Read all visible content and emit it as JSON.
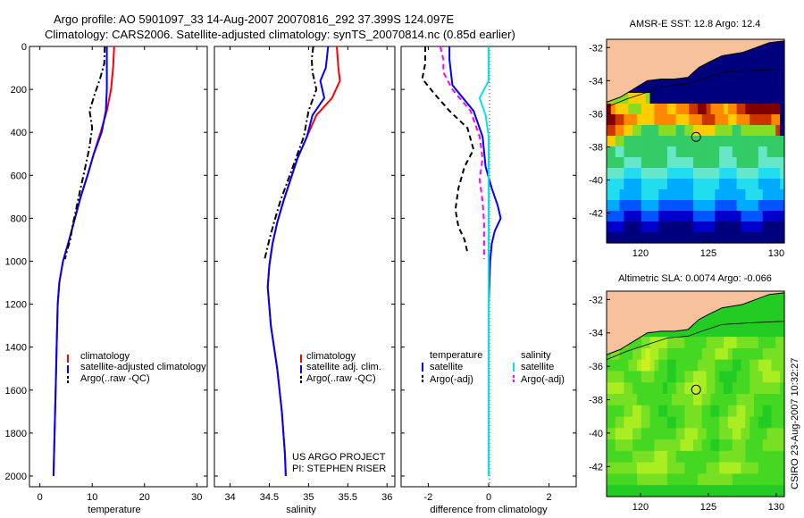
{
  "header": {
    "line1": "Argo profile: AO 5901097_33 14-Aug-2007 20070816_292 37.399S 124.097E",
    "line2": "Climatology: CARS2006. Satellite-adjusted climatology: synTS_20070814.nc (0.85d earlier)"
  },
  "credit": {
    "project": "US ARGO PROJECT",
    "pi": "PI: STEPHEN RISER",
    "stamp": "CSIRO 23-Aug-2007 10:32:27"
  },
  "colors": {
    "red": "#ff0000",
    "blue": "#0000ff",
    "black": "#000000",
    "cyan": "#00e5e5",
    "magenta": "#ff00ff",
    "land": "#f7c19b"
  },
  "chart_data": [
    {
      "type": "line",
      "id": "temperature",
      "xlabel": "temperature",
      "ylabel": "",
      "xlim": [
        -2,
        32
      ],
      "ylim": [
        2050,
        0
      ],
      "xticks": [
        0,
        10,
        20,
        30
      ],
      "yticks": [
        0,
        200,
        400,
        600,
        800,
        1000,
        1200,
        1400,
        1600,
        1800,
        2000
      ],
      "series": [
        {
          "name": "climatology",
          "color": "red",
          "dash": "solid",
          "x": [
            14.2,
            14.0,
            13.6,
            12.8,
            11.6,
            10.3,
            9.1,
            7.8,
            6.7,
            5.6,
            4.4,
            3.7,
            3.4,
            3.2,
            3.0,
            2.8,
            2.6
          ],
          "y": [
            0,
            100,
            200,
            300,
            400,
            500,
            600,
            700,
            800,
            900,
            1000,
            1100,
            1200,
            1400,
            1600,
            1800,
            2000
          ]
        },
        {
          "name": "satellite-adjusted climatology",
          "color": "blue",
          "dash": "solid",
          "x": [
            12.8,
            12.8,
            12.8,
            12.6,
            11.8,
            10.3,
            9.1,
            7.8,
            6.7,
            5.6,
            4.4,
            3.7,
            3.4,
            3.2,
            3.0,
            2.8,
            2.6
          ],
          "y": [
            0,
            100,
            200,
            300,
            400,
            500,
            600,
            700,
            800,
            900,
            1000,
            1100,
            1200,
            1400,
            1600,
            1800,
            2000
          ]
        },
        {
          "name": "Argo(..raw -QC)",
          "color": "black",
          "dash": "dashdot",
          "x": [
            12.4,
            12.3,
            11.5,
            10.5,
            9.5,
            10.0,
            9.4,
            8.5,
            7.6,
            6.9,
            6.2,
            5.8,
            5.2,
            4.8
          ],
          "y": [
            0,
            80,
            150,
            220,
            300,
            380,
            480,
            580,
            680,
            760,
            840,
            900,
            950,
            990
          ]
        }
      ],
      "legend": "center-right"
    },
    {
      "type": "line",
      "id": "salinity",
      "xlabel": "salinity",
      "ylabel": "",
      "xlim": [
        33.8,
        36.1
      ],
      "ylim": [
        2050,
        0
      ],
      "xticks": [
        34,
        34.5,
        35,
        35.5,
        36
      ],
      "series": [
        {
          "name": "climatology",
          "color": "red",
          "dash": "solid",
          "x": [
            35.36,
            35.38,
            35.4,
            35.3,
            35.1,
            34.98,
            34.86,
            34.77,
            34.68,
            34.6,
            34.54,
            34.5,
            34.48,
            34.52,
            34.6,
            34.66,
            34.7,
            34.71
          ],
          "y": [
            0,
            100,
            160,
            240,
            320,
            420,
            520,
            620,
            720,
            820,
            920,
            1020,
            1120,
            1300,
            1500,
            1700,
            1900,
            2000
          ]
        },
        {
          "name": "satellite adj. clim.",
          "color": "blue",
          "dash": "solid",
          "x": [
            35.25,
            35.22,
            35.15,
            35.2,
            35.05,
            34.98,
            34.86,
            34.77,
            34.68,
            34.6,
            34.54,
            34.5,
            34.48,
            34.52,
            34.6,
            34.66,
            34.7,
            34.71
          ],
          "y": [
            0,
            100,
            160,
            240,
            320,
            420,
            520,
            620,
            720,
            820,
            920,
            1020,
            1120,
            1300,
            1500,
            1700,
            1900,
            2000
          ]
        },
        {
          "name": "Argo(..raw -QC)",
          "color": "black",
          "dash": "dashdot",
          "x": [
            35.06,
            35.04,
            35.05,
            35.1,
            35.0,
            34.94,
            34.84,
            34.74,
            34.64,
            34.56,
            34.5,
            34.46,
            34.44
          ],
          "y": [
            0,
            60,
            120,
            200,
            300,
            420,
            520,
            620,
            720,
            820,
            900,
            960,
            990
          ]
        }
      ],
      "legend": "center-right"
    },
    {
      "type": "line",
      "id": "difference",
      "xlabel": "difference from climatology",
      "ylabel": "",
      "xlim": [
        -2.9,
        2.9
      ],
      "ylim": [
        2050,
        0
      ],
      "xticks": [
        -2,
        0,
        2
      ],
      "legend_headers": [
        "temperature",
        "salinity"
      ],
      "series": [
        {
          "name": "satellite",
          "group": "temperature",
          "color": "blue",
          "dash": "solid",
          "x": [
            -1.3,
            -1.3,
            -1.2,
            -0.5,
            -0.2,
            -0.1,
            0.1,
            0.3,
            0.4,
            0.2,
            0.1,
            0.05,
            0.0,
            0.0,
            0.0
          ],
          "y": [
            0,
            60,
            180,
            300,
            420,
            560,
            660,
            740,
            800,
            860,
            920,
            1000,
            1200,
            1600,
            2000
          ]
        },
        {
          "name": "Argo(-adj)",
          "group": "temperature",
          "color": "black",
          "dash": "dashed",
          "x": [
            -2.1,
            -2.1,
            -2.2,
            -1.8,
            -1.3,
            -0.7,
            -0.5,
            -0.8,
            -1.0,
            -1.1,
            -1.0,
            -0.8,
            -0.7
          ],
          "y": [
            0,
            80,
            150,
            220,
            300,
            380,
            480,
            560,
            660,
            760,
            840,
            900,
            960
          ]
        },
        {
          "name": "satellite",
          "group": "salinity",
          "color": "cyan",
          "dash": "solid",
          "x": [
            0.0,
            0.0,
            0.0,
            -0.3,
            -0.1,
            0.0,
            0.0,
            0.0,
            0.0,
            0.0,
            0.0
          ],
          "y": [
            0,
            100,
            160,
            240,
            320,
            420,
            600,
            1000,
            1400,
            1800,
            2000
          ]
        },
        {
          "name": "Argo(-adj)",
          "group": "salinity",
          "color": "magenta",
          "dash": "dashed",
          "x": [
            -1.6,
            -1.5,
            -1.5,
            -1.2,
            -0.6,
            -0.3,
            -0.2,
            -0.3,
            -0.2,
            -0.15,
            -0.15
          ],
          "y": [
            0,
            60,
            120,
            200,
            300,
            420,
            520,
            620,
            720,
            820,
            990
          ]
        }
      ]
    },
    {
      "type": "heatmap",
      "id": "sst",
      "title": "AMSR-E SST: 12.8 Argo: 12.4",
      "xlim": [
        117.5,
        130.6
      ],
      "ylim": [
        -43.8,
        -31.5
      ],
      "xticks": [
        120,
        125,
        130
      ],
      "yticks": [
        -32,
        -34,
        -36,
        -38,
        -40,
        -42
      ],
      "marker": {
        "lon": 124.097,
        "lat": -37.399
      },
      "palette": [
        "#00007f",
        "#0000cc",
        "#0055ff",
        "#00aaff",
        "#22ddee",
        "#66e8c8",
        "#33cc66",
        "#88dd22",
        "#ffcc00",
        "#ff8800",
        "#cc3300",
        "#7f0000"
      ],
      "rows": [
        "00000000000000000000000000000000000000000",
        "00000000000000000000000000000000000000000",
        "00000000000000000000000000000000000000000",
        "00000000000000000000000000000000000000000",
        "77777000000000000000000000000000000000000",
        "7777788887000000000000000000000000000000",
        "B988877788899988999AABBA999899AABBBBBBBB",
        "BBAA999888899999888999AAA99988999AAAAA99",
        "AA9988776666777766778888877776677777777A",
        "88776666666666666666666666666666666666666",
        "66556666666666556666666666555666666556666",
        "66665555666666555555666666555566666555555",
        "55554444555555444444555555444455555444445",
        "44443333444444333333444444333344444333334",
        "44433333444433333333444443333333444433333",
        "33322222333322222222333332222233333222222",
        "22221111222211111111222221111112222211111",
        "11110000111100000000111110000001111100000",
        "00000000000000000000000000000000000000000"
      ]
    },
    {
      "type": "heatmap",
      "id": "sla",
      "title": "Altimetric SLA: 0.0074 Argo: -0.066",
      "xlim": [
        117.5,
        130.6
      ],
      "ylim": [
        -43.8,
        -31.5
      ],
      "xticks": [
        120,
        125,
        130
      ],
      "yticks": [
        -32,
        -34,
        -36,
        -38,
        -40,
        -42
      ],
      "marker": {
        "lon": 124.097,
        "lat": -37.399
      },
      "palette": [
        "#22cc22",
        "#44d822",
        "#77e022",
        "#aaee22",
        "#ccf020"
      ],
      "rows": [
        "00000000000000000000000000000000000000000",
        "00000000000000000000000000000000000000000",
        "00000000000000000000000000000000000000000",
        "12221000000000000000000000000000000000000",
        "23432111223333222211111222233322222111122",
        "12211122343322111111112223332111111122222",
        "11111223443211001111122221111001122333222",
        "22221111222111001122333221000011122233332",
        "33332211111110112233433221100111122222221",
        "22222221111111122222332211111122221111111",
        "11112233221100111122221100112233221100111",
        "11223333221111001122221111223333211000111",
        "22333322111111112233322111222332211112222",
        "11222211111222222333221100111222111122222",
        "11111122222333221111111111222222111111111",
        "22222223333333222211111222333332222111111",
        "11111112222222111111122222222111111111111",
        "00000000000000000000000000000000000000000"
      ]
    }
  ]
}
